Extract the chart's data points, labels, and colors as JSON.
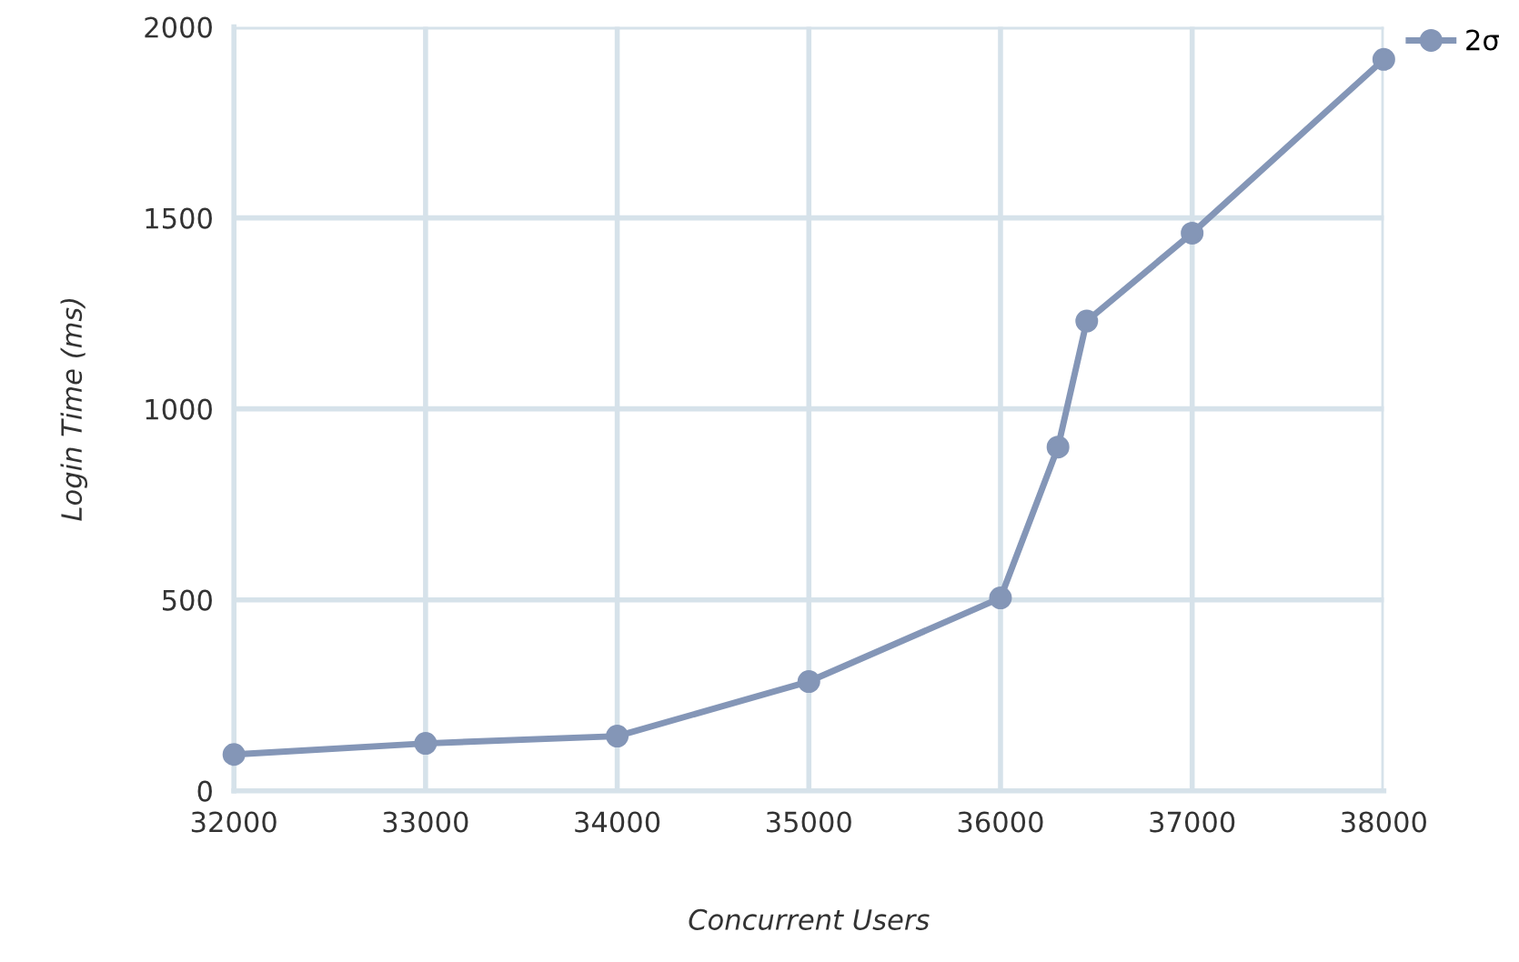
{
  "chart_data": {
    "type": "line",
    "xlabel": "Concurrent Users",
    "ylabel": "Login Time (ms)",
    "xlim": [
      32000,
      38000
    ],
    "xticks": [
      32000,
      33000,
      34000,
      35000,
      36000,
      37000,
      38000
    ],
    "ylim": [
      0,
      2000
    ],
    "yticks": [
      0,
      500,
      1000,
      1500,
      2000
    ],
    "grid": true,
    "legend": "top right",
    "marker": "circle",
    "line_style": "solid",
    "series": [
      {
        "name": "2σ",
        "color": "#8496b7",
        "x": [
          32000,
          33000,
          34000,
          35000,
          36000,
          36300,
          36450,
          37000,
          38000
        ],
        "values": [
          95,
          124,
          143,
          286,
          505,
          900,
          1230,
          1460,
          1915
        ]
      }
    ]
  }
}
